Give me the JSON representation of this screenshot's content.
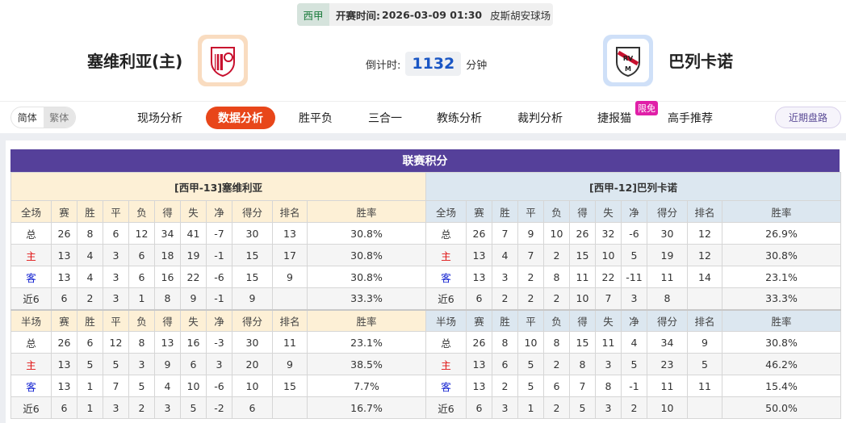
{
  "match": {
    "league": "西甲",
    "time_label": "开赛时间:",
    "time": "2026-03-09 01:30",
    "venue": "皮斯胡安球场",
    "home": "塞维利亚(主)",
    "away": "巴列卡诺",
    "countdown_label": "倒计时:",
    "countdown": "1132",
    "countdown_unit": "分钟"
  },
  "nav": {
    "lang": [
      "简体",
      "繁体"
    ],
    "tabs": [
      "现场分析",
      "数据分析",
      "胜平负",
      "三合一",
      "教练分析",
      "裁判分析",
      "捷报猫",
      "高手推荐"
    ],
    "active": "数据分析",
    "badge": "限免",
    "recent": "近期盘路"
  },
  "standings": {
    "title": "联赛积分",
    "full_headers": [
      "全场",
      "赛",
      "胜",
      "平",
      "负",
      "得",
      "失",
      "净",
      "得分",
      "排名",
      "胜率"
    ],
    "half_headers": [
      "半场",
      "赛",
      "胜",
      "平",
      "负",
      "得",
      "失",
      "净",
      "得分",
      "排名",
      "胜率"
    ],
    "home": {
      "name": "[西甲-13]塞维利亚",
      "full": [
        [
          "总",
          "26",
          "8",
          "6",
          "12",
          "34",
          "41",
          "-7",
          "30",
          "13",
          "30.8%"
        ],
        [
          "主",
          "13",
          "4",
          "3",
          "6",
          "18",
          "19",
          "-1",
          "15",
          "17",
          "30.8%"
        ],
        [
          "客",
          "13",
          "4",
          "3",
          "6",
          "16",
          "22",
          "-6",
          "15",
          "9",
          "30.8%"
        ],
        [
          "近6",
          "6",
          "2",
          "3",
          "1",
          "8",
          "9",
          "-1",
          "9",
          "",
          "33.3%"
        ]
      ],
      "half": [
        [
          "总",
          "26",
          "6",
          "12",
          "8",
          "13",
          "16",
          "-3",
          "30",
          "11",
          "23.1%"
        ],
        [
          "主",
          "13",
          "5",
          "5",
          "3",
          "9",
          "6",
          "3",
          "20",
          "9",
          "38.5%"
        ],
        [
          "客",
          "13",
          "1",
          "7",
          "5",
          "4",
          "10",
          "-6",
          "10",
          "15",
          "7.7%"
        ],
        [
          "近6",
          "6",
          "1",
          "3",
          "2",
          "3",
          "5",
          "-2",
          "6",
          "",
          "16.7%"
        ]
      ]
    },
    "away": {
      "name": "[西甲-12]巴列卡诺",
      "full": [
        [
          "总",
          "26",
          "7",
          "9",
          "10",
          "26",
          "32",
          "-6",
          "30",
          "12",
          "26.9%"
        ],
        [
          "主",
          "13",
          "4",
          "7",
          "2",
          "15",
          "10",
          "5",
          "19",
          "12",
          "30.8%"
        ],
        [
          "客",
          "13",
          "3",
          "2",
          "8",
          "11",
          "22",
          "-11",
          "11",
          "14",
          "23.1%"
        ],
        [
          "近6",
          "6",
          "2",
          "2",
          "2",
          "10",
          "7",
          "3",
          "8",
          "",
          "33.3%"
        ]
      ],
      "half": [
        [
          "总",
          "26",
          "8",
          "10",
          "8",
          "15",
          "11",
          "4",
          "34",
          "9",
          "30.8%"
        ],
        [
          "主",
          "13",
          "6",
          "5",
          "2",
          "8",
          "3",
          "5",
          "23",
          "5",
          "46.2%"
        ],
        [
          "客",
          "13",
          "2",
          "5",
          "6",
          "7",
          "8",
          "-1",
          "11",
          "11",
          "15.4%"
        ],
        [
          "近6",
          "6",
          "3",
          "1",
          "2",
          "5",
          "3",
          "2",
          "10",
          "",
          "50.0%"
        ]
      ]
    }
  },
  "colors": {
    "accent": "#e8461a",
    "title_bar": "#55409a",
    "home_label": "#e01010",
    "away_label": "#1020d0",
    "countdown": "#1a56c4"
  }
}
